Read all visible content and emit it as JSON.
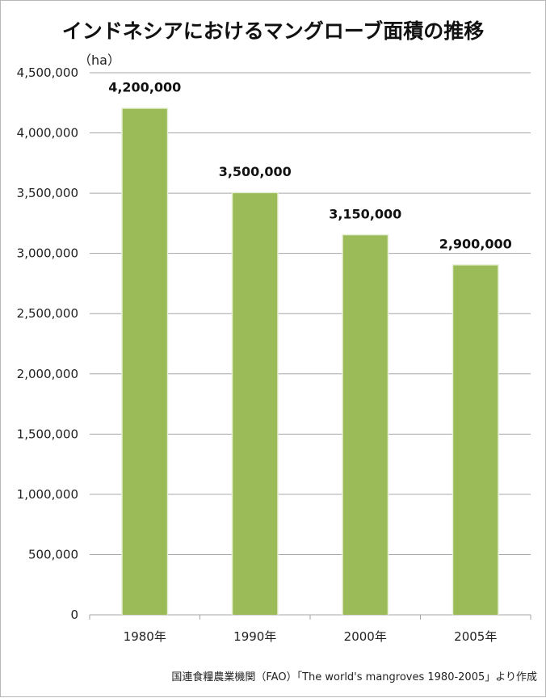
{
  "title": "インドネシアにおけるマングローブ面積の推移",
  "unit_label": "（ha）",
  "source": "国連食糧農業機関（FAO）「The world's mangroves 1980-2005」より作成",
  "colors": {
    "bar": "#9bbb59",
    "bar_edge": "#e6efd3",
    "grid": "#a6a6a6"
  },
  "chart_data": {
    "type": "bar",
    "title": "インドネシアにおけるマングローブ面積の推移",
    "ylabel": "（ha）",
    "xlabel": "",
    "categories": [
      "1980年",
      "1990年",
      "2000年",
      "2005年"
    ],
    "values": [
      4200000,
      3500000,
      3150000,
      2900000
    ],
    "data_labels": [
      "4,200,000",
      "3,500,000",
      "3,150,000",
      "2,900,000"
    ],
    "ylim": [
      0,
      4500000
    ],
    "yticks": [
      0,
      500000,
      1000000,
      1500000,
      2000000,
      2500000,
      3000000,
      3500000,
      4000000,
      4500000
    ],
    "ytick_labels": [
      "0",
      "500,000",
      "1,000,000",
      "1,500,000",
      "2,000,000",
      "2,500,000",
      "3,000,000",
      "3,500,000",
      "4,000,000",
      "4,500,000"
    ],
    "grid": true,
    "legend": "none"
  }
}
